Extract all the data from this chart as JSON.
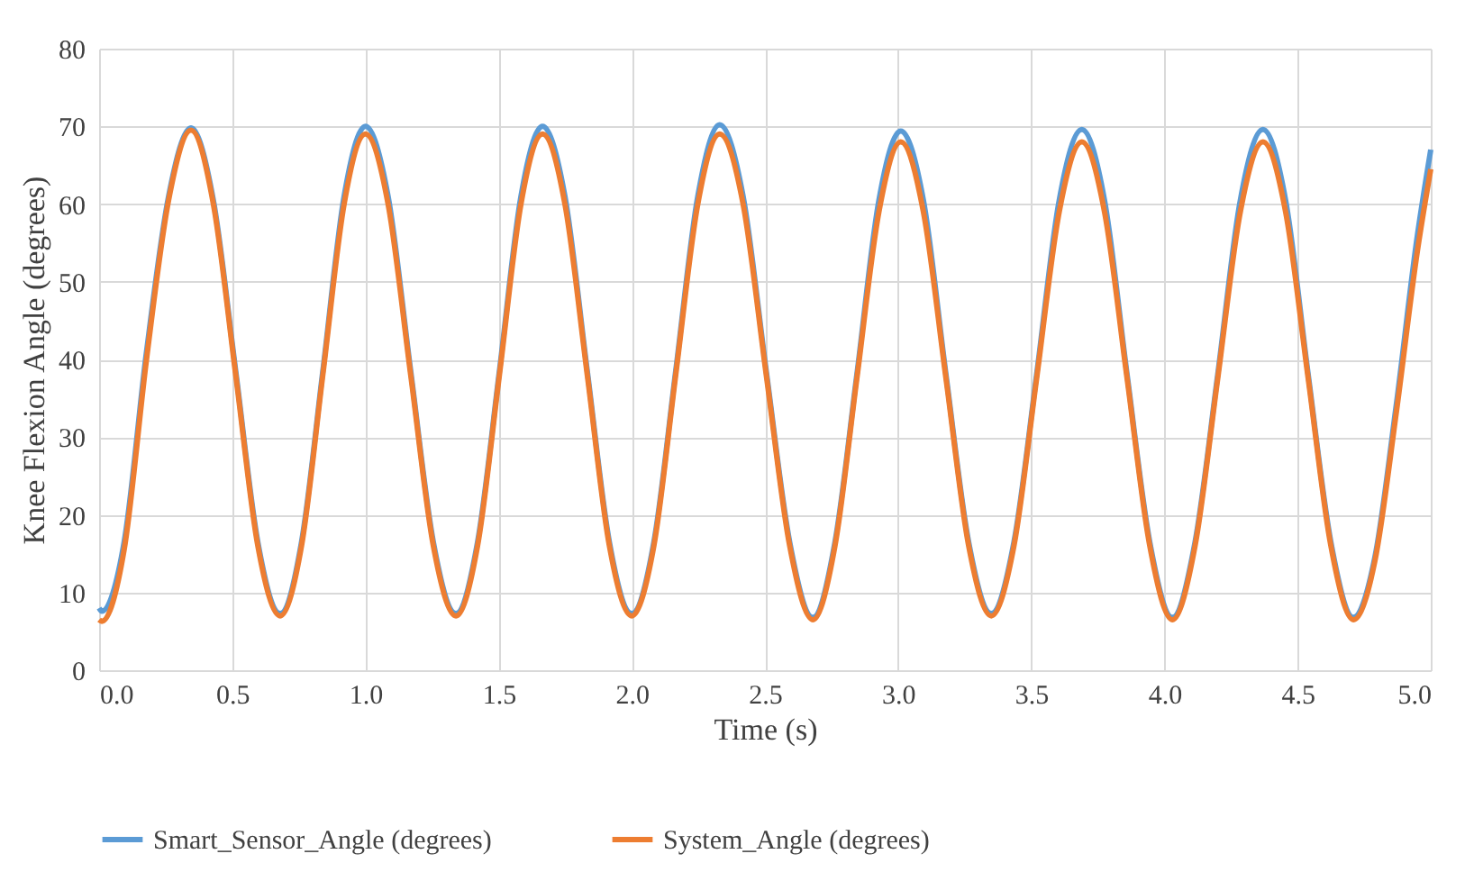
{
  "chart_data": {
    "type": "line",
    "xlabel": "Time (s)",
    "ylabel": "Knee Flexion Angle (degrees)",
    "x": [
      0,
      0.01,
      0.094,
      0.178,
      0.261,
      0.345,
      0.429,
      0.513,
      0.596,
      0.68,
      0.76,
      0.84,
      0.92,
      1.0,
      1.085,
      1.17,
      1.255,
      1.34,
      1.421,
      1.503,
      1.584,
      1.665,
      1.749,
      1.833,
      1.916,
      2.0,
      2.083,
      2.165,
      2.248,
      2.33,
      2.418,
      2.505,
      2.593,
      2.68,
      2.763,
      2.845,
      2.928,
      3.01,
      3.095,
      3.18,
      3.265,
      3.35,
      3.435,
      3.52,
      3.605,
      3.69,
      3.775,
      3.86,
      3.945,
      4.03,
      4.115,
      4.2,
      4.285,
      4.37,
      4.455,
      4.54,
      4.625,
      4.71,
      4.79,
      4.87,
      4.95,
      5.0
    ],
    "series": [
      {
        "name": "Smart_Sensor_Angle (degrees)",
        "color": "#5b9bd5",
        "values": [
          8,
          7.6,
          16.5,
          41,
          61,
          69.8,
          60.5,
          38.5,
          16.5,
          7.3,
          16.5,
          38.5,
          61,
          70,
          61,
          38.5,
          16.5,
          7.3,
          16.5,
          38.5,
          61,
          70,
          61,
          38.5,
          16.5,
          7.3,
          16.5,
          38.5,
          61,
          70.2,
          61,
          38.5,
          16.5,
          6.8,
          16.5,
          38,
          60.5,
          69.4,
          60.5,
          38,
          16.5,
          7.3,
          16.5,
          38,
          60.5,
          69.6,
          60.5,
          38,
          16.5,
          6.8,
          16.5,
          38,
          60.5,
          69.6,
          60.5,
          38,
          16.5,
          6.8,
          14.5,
          34,
          56,
          67
        ]
      },
      {
        "name": "System_Angle (degrees)",
        "color": "#ed7d31",
        "values": [
          6.5,
          6.3,
          15.5,
          40,
          60.5,
          69.5,
          60,
          38,
          16,
          7,
          16,
          38,
          60,
          69,
          60,
          38,
          16,
          7,
          16,
          38,
          60,
          69,
          60,
          38,
          16,
          7,
          16,
          38,
          60,
          69,
          60,
          38,
          16,
          6.5,
          16,
          37.5,
          59,
          68,
          59,
          37.5,
          16,
          7,
          16,
          37.5,
          59,
          68,
          59,
          37.5,
          16,
          6.5,
          16,
          37.5,
          59,
          68,
          59,
          37.5,
          16,
          6.5,
          14,
          33,
          54,
          64.5
        ]
      }
    ],
    "xlim": [
      0,
      5
    ],
    "xticks": [
      {
        "value": 0,
        "label": "0.0"
      },
      0.5,
      {
        "value": 1,
        "label": "1.0"
      },
      1.5,
      {
        "value": 2,
        "label": "2.0"
      },
      2.5,
      {
        "value": 3,
        "label": "3.0"
      },
      3.5,
      {
        "value": 4,
        "label": "4.0"
      },
      4.5,
      {
        "value": 5,
        "label": "5.0"
      }
    ],
    "ylim": [
      0,
      80
    ],
    "yticks": [
      0,
      10,
      20,
      30,
      40,
      50,
      60,
      70,
      80
    ],
    "grid": true,
    "legend": "bottom",
    "marker": "none",
    "line_style": "solid"
  }
}
